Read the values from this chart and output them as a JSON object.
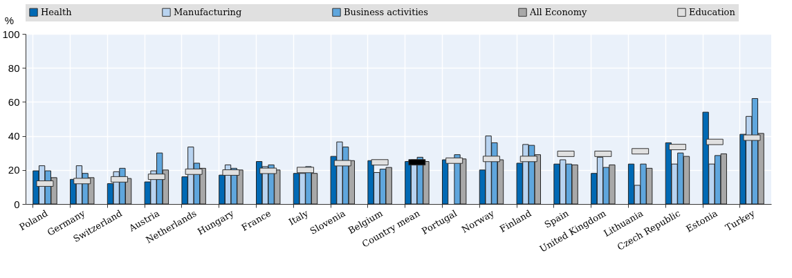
{
  "chart_data": {
    "type": "bar",
    "ylabel": "%",
    "categories": [
      "Poland",
      "Germany",
      "Switzerland",
      "Austria",
      "Netherlands",
      "Hungary",
      "France",
      "Italy",
      "Slovenia",
      "Belgium",
      "Country mean",
      "Portugal",
      "Norway",
      "Finland",
      "Spain",
      "United Kingdom",
      "Lithuania",
      "Czech Republic",
      "Estonia",
      "Turkey"
    ],
    "series": [
      {
        "name": "Health",
        "color": "#0069b4",
        "values": [
          19.5,
          14.5,
          12,
          13,
          16,
          17,
          25,
          18,
          28,
          25.5,
          25,
          26,
          20,
          24,
          23.5,
          18,
          23.5,
          36,
          54,
          41
        ]
      },
      {
        "name": "Manufacturing",
        "color": "#b8d3f0",
        "values": [
          22.5,
          22.5,
          19,
          19.5,
          33.5,
          23,
          22,
          18,
          36.5,
          18.5,
          26,
          null,
          40,
          35,
          26,
          27.5,
          11,
          23.5,
          23.5,
          51.5
        ]
      },
      {
        "name": "Business activities",
        "color": "#5fa6dd",
        "values": [
          19.5,
          18,
          21,
          30,
          24,
          21,
          23,
          22,
          33.5,
          20.5,
          27.5,
          29,
          36,
          34.5,
          23.5,
          21.5,
          23.5,
          30,
          28.5,
          62
        ]
      },
      {
        "name": "All Economy",
        "color": "#a8a8a8",
        "values": [
          15.5,
          15.5,
          15,
          20,
          21,
          20,
          20,
          18,
          25.5,
          21.5,
          25,
          26.5,
          26,
          29,
          23,
          23,
          21,
          28,
          29.5,
          41.5
        ]
      },
      {
        "name": "Education",
        "type": "scatter",
        "marker": "square",
        "color": "#e0e0e0",
        "colors": [
          "#e0e0e0",
          "#e0e0e0",
          "#e0e0e0",
          "#e0e0e0",
          "#e0e0e0",
          "#e0e0e0",
          "#e0e0e0",
          "#e0e0e0",
          "#e0e0e0",
          "#e0e0e0",
          "#000000",
          "#e0e0e0",
          "#e0e0e0",
          "#e0e0e0",
          "#e0e0e0",
          "#e0e0e0",
          "#e0e0e0",
          "#e0e0e0",
          "#e0e0e0",
          "#e0e0e0"
        ],
        "values": [
          12,
          13.5,
          14.5,
          16,
          19,
          18.5,
          19.5,
          20,
          24,
          24.5,
          24.5,
          25.5,
          26.5,
          26.5,
          29.5,
          29.5,
          31,
          33.5,
          36.5,
          39
        ]
      }
    ],
    "ylim": [
      0,
      100
    ],
    "yticks": [
      0,
      20,
      40,
      60,
      80,
      100
    ],
    "grid": true,
    "legend": "top"
  }
}
